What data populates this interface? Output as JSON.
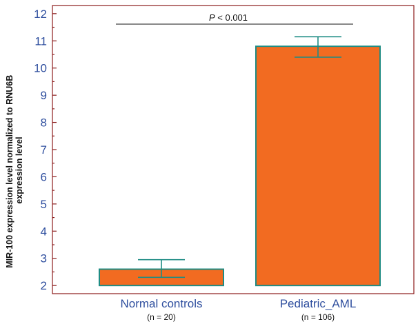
{
  "chart_data": {
    "type": "bar",
    "categories": [
      "Normal controls",
      "Pediatric_AML"
    ],
    "category_sublabels": [
      "(n = 20)",
      "(n = 106)"
    ],
    "values": [
      2.6,
      10.8
    ],
    "error_bars": [
      {
        "lower": 2.3,
        "upper": 2.95
      },
      {
        "lower": 10.4,
        "upper": 11.15
      }
    ],
    "bar_baseline": 2.0,
    "ylabel": [
      "MIR-100 expression level normalized to RNU6B",
      "expression level"
    ],
    "ylim": [
      1.7,
      12.3
    ],
    "yticks": [
      2,
      3,
      4,
      5,
      6,
      7,
      8,
      9,
      10,
      11,
      12
    ],
    "significance": {
      "symbol": "P",
      "text": " < 0.001"
    },
    "colors": {
      "bar_fill": "#f26b21",
      "bar_edge": "#1e8c84",
      "axis": "#8b1a1a",
      "tick_label": "#2e4e9e"
    },
    "grid": false,
    "legend": "none"
  }
}
